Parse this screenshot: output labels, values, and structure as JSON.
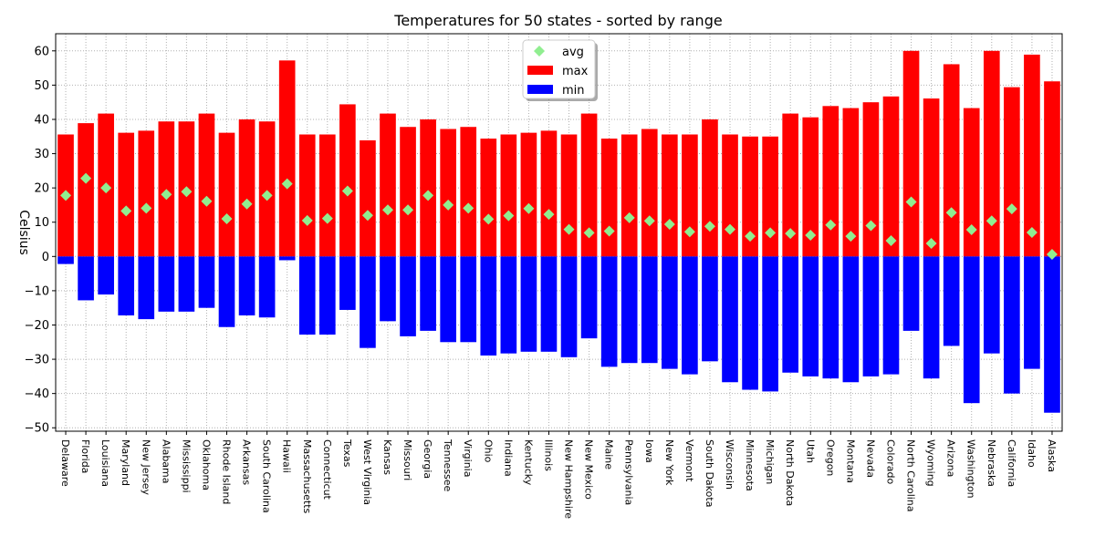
{
  "chart_data": {
    "type": "bar",
    "title": "Temperatures for 50 states - sorted by range",
    "ylabel": "Celsius",
    "xlabel": "",
    "ylim": [
      -51,
      65
    ],
    "yticks": [
      -50,
      -40,
      -30,
      -20,
      -10,
      0,
      10,
      20,
      30,
      40,
      50,
      60
    ],
    "grid": true,
    "legend": {
      "placement": "top-center",
      "entries": [
        "avg",
        "max",
        "min"
      ]
    },
    "colors": {
      "max": "#ff0000",
      "min": "#0000ff",
      "avg": "#90ee90"
    },
    "categories": [
      "Delaware",
      "Florida",
      "Louisiana",
      "Maryland",
      "New Jersey",
      "Alabama",
      "Mississippi",
      "Oklahoma",
      "Rhode Island",
      "Arkansas",
      "South Carolina",
      "Hawaii",
      "Massachusetts",
      "Connecticut",
      "Texas",
      "West Virginia",
      "Kansas",
      "Missouri",
      "Georgia",
      "Tennessee",
      "Virginia",
      "Ohio",
      "Indiana",
      "Kentucky",
      "Illinois",
      "New Hampshire",
      "New Mexico",
      "Maine",
      "Pennsylvania",
      "Iowa",
      "New York",
      "Vermont",
      "South Dakota",
      "Wisconsin",
      "Minnesota",
      "Michigan",
      "North Dakota",
      "Utah",
      "Oregon",
      "Montana",
      "Nevada",
      "Colorado",
      "North Carolina",
      "Wyoming",
      "Arizona",
      "Washington",
      "Nebraska",
      "California",
      "Idaho",
      "Alaska"
    ],
    "series": [
      {
        "name": "max",
        "values": [
          35.6,
          38.9,
          41.7,
          36.1,
          36.7,
          39.4,
          39.4,
          41.7,
          36.1,
          40.0,
          39.4,
          57.2,
          35.6,
          35.6,
          44.4,
          33.9,
          41.7,
          37.8,
          40.0,
          37.2,
          37.8,
          34.4,
          35.6,
          36.1,
          36.7,
          35.6,
          41.7,
          34.4,
          35.6,
          37.2,
          35.6,
          35.6,
          40.0,
          35.6,
          35.0,
          35.0,
          41.7,
          40.6,
          43.9,
          43.3,
          45.0,
          46.7,
          60.0,
          46.1,
          56.1,
          43.3,
          60.0,
          49.4,
          58.9,
          51.1
        ]
      },
      {
        "name": "min",
        "values": [
          -2.2,
          -12.8,
          -11.1,
          -17.2,
          -18.3,
          -16.1,
          -16.1,
          -15.0,
          -20.6,
          -17.2,
          -17.8,
          -1.1,
          -22.8,
          -22.8,
          -15.6,
          -26.7,
          -18.9,
          -23.3,
          -21.7,
          -25.0,
          -25.0,
          -28.9,
          -28.3,
          -27.8,
          -27.8,
          -29.4,
          -23.9,
          -32.2,
          -31.1,
          -31.1,
          -32.8,
          -34.4,
          -30.6,
          -36.7,
          -38.9,
          -39.4,
          -33.9,
          -35.0,
          -35.6,
          -36.7,
          -35.0,
          -34.4,
          -21.7,
          -35.6,
          -26.1,
          -42.8,
          -28.3,
          -40.0,
          -32.8,
          -45.6
        ]
      },
      {
        "name": "avg",
        "values": [
          17.8,
          22.8,
          20.0,
          13.3,
          14.1,
          18.1,
          18.9,
          16.1,
          11.0,
          15.3,
          17.8,
          21.2,
          10.5,
          11.1,
          19.1,
          12.0,
          13.6,
          13.6,
          17.8,
          15.0,
          14.1,
          10.9,
          11.9,
          14.0,
          12.3,
          7.9,
          6.9,
          7.4,
          11.3,
          10.4,
          9.4,
          7.2,
          8.8,
          7.9,
          5.9,
          6.9,
          6.7,
          6.2,
          9.2,
          5.9,
          9.0,
          4.6,
          15.9,
          3.8,
          12.8,
          7.8,
          10.4,
          13.9,
          7.0,
          0.6
        ]
      }
    ]
  }
}
